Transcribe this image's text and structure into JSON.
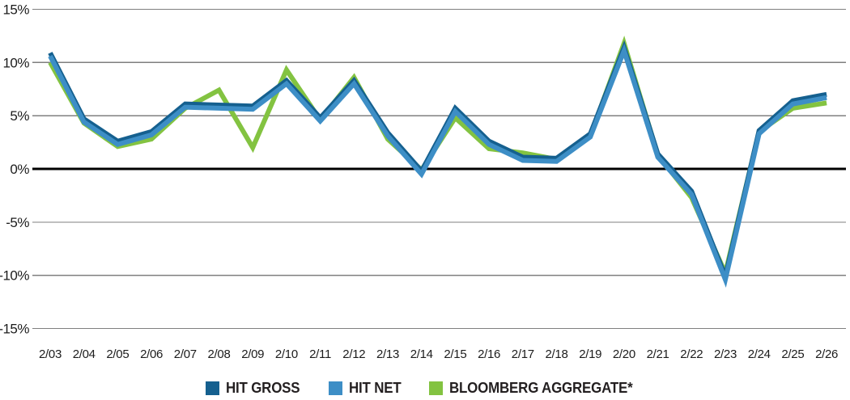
{
  "chart_data": {
    "type": "line",
    "title": "",
    "categories": [
      "2/03",
      "2/04",
      "2/05",
      "2/06",
      "2/07",
      "2/08",
      "2/09",
      "2/10",
      "2/11",
      "2/12",
      "2/13",
      "2/14",
      "2/15",
      "2/16",
      "2/17",
      "2/18",
      "2/19",
      "2/20",
      "2/21",
      "2/22",
      "2/23",
      "2/24",
      "2/25",
      "2/26"
    ],
    "series": [
      {
        "name": "HIT GROSS",
        "color": "#15608f",
        "values": [
          10.9,
          4.7,
          2.6,
          3.5,
          6.1,
          6.0,
          5.9,
          8.3,
          4.8,
          8.3,
          3.4,
          -0.2,
          5.7,
          2.6,
          1.1,
          1.0,
          3.3,
          11.4,
          1.4,
          -2.1,
          -10.1,
          3.6,
          6.4,
          7.0
        ]
      },
      {
        "name": "HIT NET",
        "color": "#3d8ec6",
        "values": [
          10.6,
          4.4,
          2.3,
          3.2,
          5.8,
          5.7,
          5.6,
          8.0,
          4.5,
          8.0,
          3.1,
          -0.5,
          5.4,
          2.3,
          0.8,
          0.7,
          3.0,
          11.1,
          1.1,
          -2.4,
          -10.4,
          3.3,
          6.1,
          6.7
        ]
      },
      {
        "name": "BLOOMBERG AGGREGATE*",
        "color": "#83c341",
        "values": [
          10.0,
          4.3,
          2.1,
          2.8,
          5.7,
          7.4,
          2.0,
          9.3,
          4.6,
          8.6,
          2.8,
          -0.1,
          4.8,
          1.9,
          1.5,
          0.9,
          3.1,
          11.8,
          1.3,
          -2.7,
          -9.8,
          3.5,
          5.7,
          6.2
        ]
      }
    ],
    "ylim": [
      -15,
      15
    ],
    "yticks": [
      15,
      10,
      5,
      0,
      -5,
      -10,
      -15
    ],
    "ytick_labels": [
      "15%",
      "10%",
      "5%",
      "0%",
      "-5%",
      "-10%",
      "-15%"
    ],
    "grid": true,
    "zero_line_color": "#000000",
    "gridline_color": "#7f7f7f",
    "legend_position": "bottom"
  }
}
